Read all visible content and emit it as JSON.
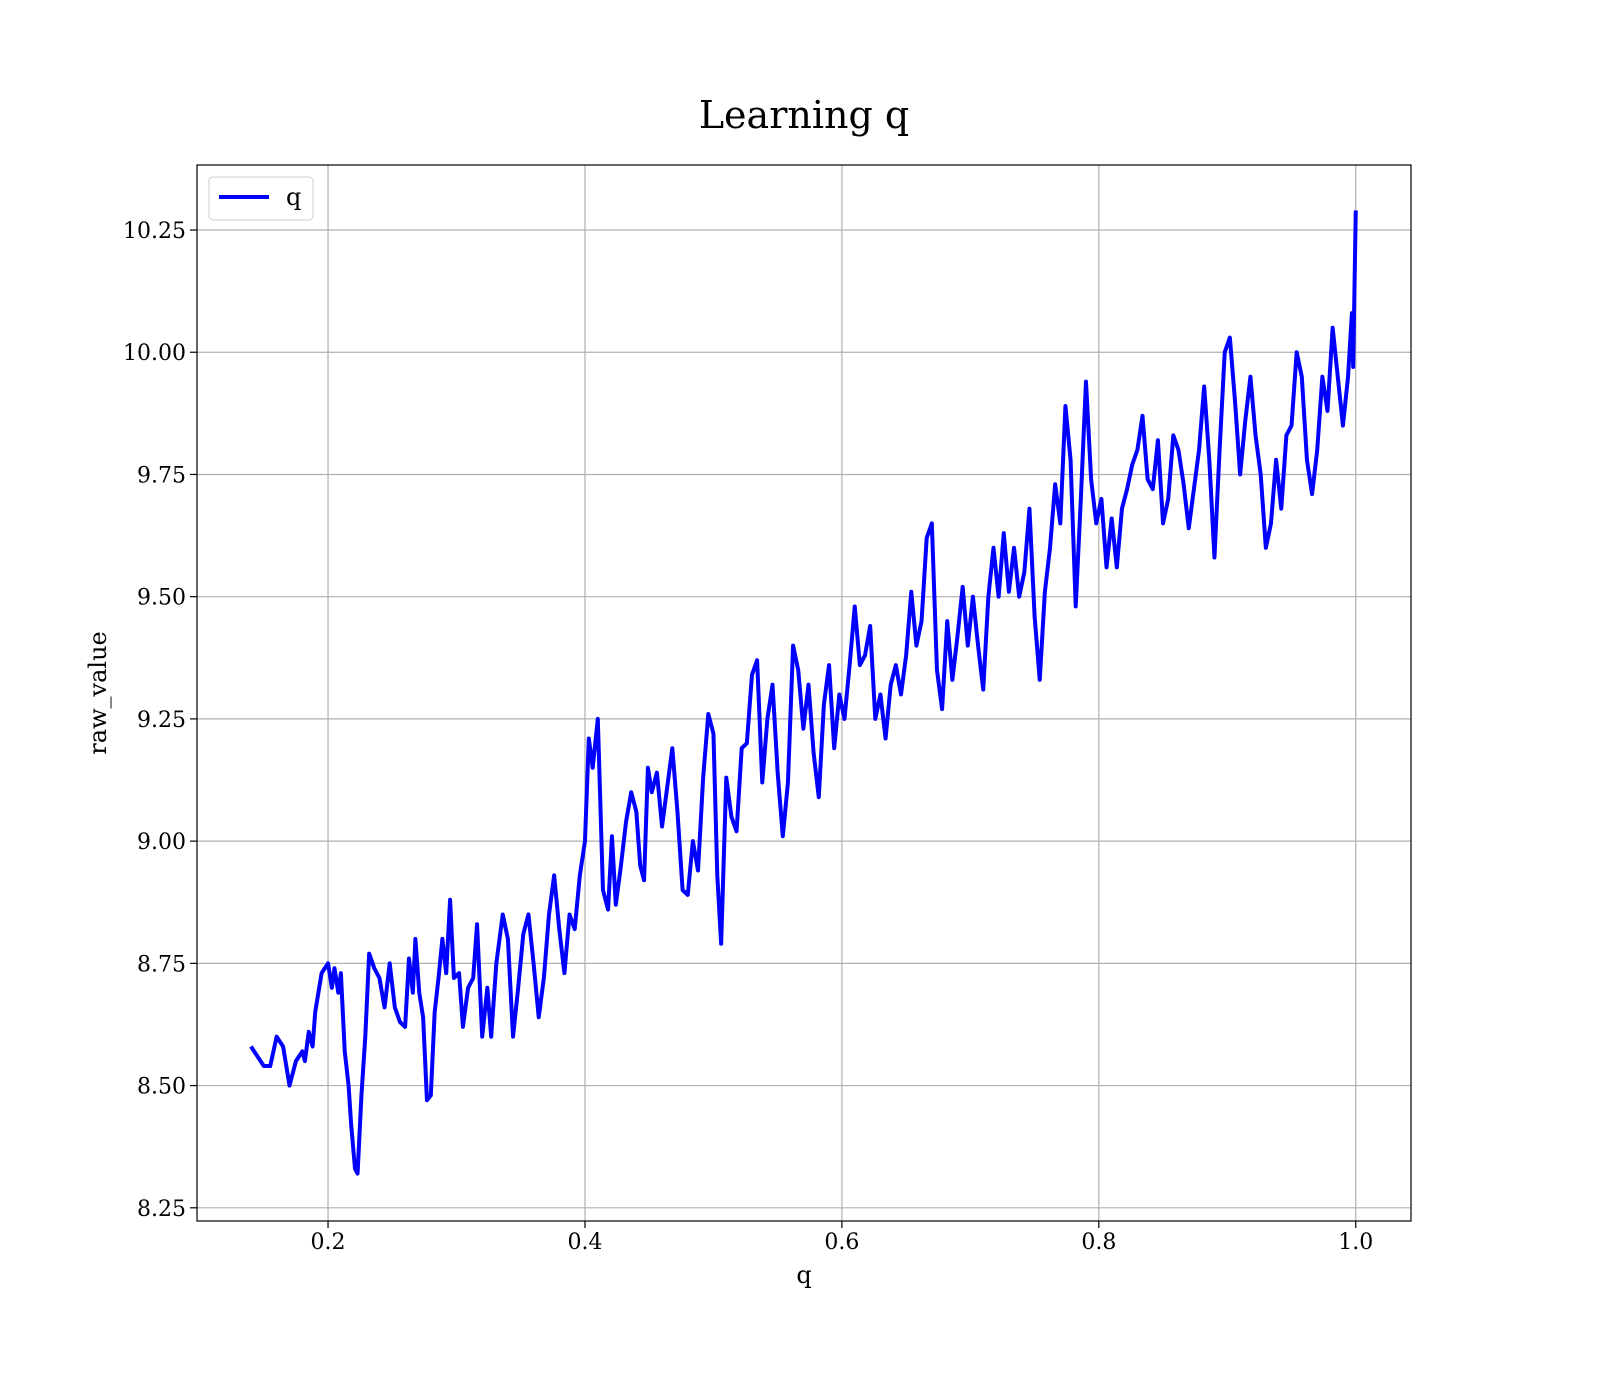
{
  "chart_data": {
    "type": "line",
    "title": "Learning q",
    "x_label": "q",
    "y_label": "raw_value",
    "xlim": [
      0.098,
      1.043
    ],
    "ylim": [
      8.223,
      10.383
    ],
    "xticks": [
      0.2,
      0.4,
      0.6,
      0.8,
      {
        "value": 1,
        "label": "1.0"
      }
    ],
    "yticks": [
      8.25,
      {
        "value": 8.5,
        "label": "8.50"
      },
      8.75,
      {
        "value": 9,
        "label": "9.00"
      },
      9.25,
      {
        "value": 9.5,
        "label": "9.50"
      },
      9.75,
      {
        "value": 10,
        "label": "10.00"
      },
      10.25
    ],
    "grid": true,
    "legend": "upper left",
    "x": [
      0.14,
      0.15,
      0.155,
      0.16,
      0.165,
      0.17,
      0.175,
      0.18,
      0.182,
      0.185,
      0.188,
      0.19,
      0.195,
      0.2,
      0.203,
      0.205,
      0.208,
      0.21,
      0.213,
      0.216,
      0.218,
      0.221,
      0.223,
      0.226,
      0.229,
      0.232,
      0.236,
      0.24,
      0.244,
      0.248,
      0.252,
      0.256,
      0.26,
      0.263,
      0.266,
      0.268,
      0.271,
      0.274,
      0.277,
      0.28,
      0.283,
      0.286,
      0.289,
      0.292,
      0.295,
      0.298,
      0.302,
      0.305,
      0.309,
      0.313,
      0.316,
      0.32,
      0.324,
      0.327,
      0.331,
      0.336,
      0.34,
      0.344,
      0.348,
      0.352,
      0.356,
      0.36,
      0.364,
      0.368,
      0.372,
      0.376,
      0.38,
      0.384,
      0.388,
      0.392,
      0.396,
      0.4,
      0.403,
      0.406,
      0.41,
      0.414,
      0.418,
      0.421,
      0.424,
      0.428,
      0.432,
      0.436,
      0.44,
      0.443,
      0.446,
      0.449,
      0.452,
      0.456,
      0.46,
      0.464,
      0.468,
      0.472,
      0.476,
      0.48,
      0.484,
      0.488,
      0.492,
      0.496,
      0.5,
      0.503,
      0.506,
      0.51,
      0.514,
      0.518,
      0.522,
      0.526,
      0.53,
      0.534,
      0.538,
      0.542,
      0.546,
      0.55,
      0.554,
      0.558,
      0.562,
      0.566,
      0.57,
      0.574,
      0.578,
      0.582,
      0.586,
      0.59,
      0.594,
      0.598,
      0.602,
      0.606,
      0.61,
      0.614,
      0.618,
      0.622,
      0.626,
      0.63,
      0.634,
      0.638,
      0.642,
      0.646,
      0.65,
      0.654,
      0.658,
      0.662,
      0.666,
      0.67,
      0.674,
      0.678,
      0.682,
      0.686,
      0.69,
      0.694,
      0.698,
      0.702,
      0.706,
      0.71,
      0.714,
      0.718,
      0.722,
      0.726,
      0.73,
      0.734,
      0.738,
      0.742,
      0.746,
      0.75,
      0.754,
      0.758,
      0.762,
      0.766,
      0.77,
      0.774,
      0.778,
      0.782,
      0.786,
      0.79,
      0.794,
      0.798,
      0.802,
      0.806,
      0.81,
      0.814,
      0.818,
      0.822,
      0.826,
      0.83,
      0.834,
      0.838,
      0.842,
      0.846,
      0.85,
      0.854,
      0.858,
      0.862,
      0.866,
      0.87,
      0.874,
      0.878,
      0.882,
      0.886,
      0.89,
      0.894,
      0.898,
      0.902,
      0.906,
      0.91,
      0.914,
      0.918,
      0.922,
      0.926,
      0.93,
      0.934,
      0.938,
      0.942,
      0.946,
      0.95,
      0.954,
      0.958,
      0.962,
      0.966,
      0.97,
      0.974,
      0.978,
      0.982,
      0.986,
      0.99,
      0.994,
      0.997,
      0.998,
      1.0
    ],
    "series": [
      {
        "name": "q",
        "color": "#0000ff",
        "values": [
          8.58,
          8.54,
          8.54,
          8.6,
          8.58,
          8.5,
          8.55,
          8.57,
          8.55,
          8.61,
          8.58,
          8.65,
          8.73,
          8.75,
          8.7,
          8.74,
          8.69,
          8.73,
          8.57,
          8.5,
          8.42,
          8.33,
          8.32,
          8.48,
          8.6,
          8.77,
          8.74,
          8.72,
          8.66,
          8.75,
          8.66,
          8.63,
          8.62,
          8.76,
          8.69,
          8.8,
          8.69,
          8.64,
          8.47,
          8.48,
          8.65,
          8.72,
          8.8,
          8.73,
          8.88,
          8.72,
          8.73,
          8.62,
          8.7,
          8.72,
          8.83,
          8.6,
          8.7,
          8.6,
          8.75,
          8.85,
          8.8,
          8.6,
          8.7,
          8.81,
          8.85,
          8.75,
          8.64,
          8.72,
          8.85,
          8.93,
          8.82,
          8.73,
          8.85,
          8.82,
          8.93,
          9.0,
          9.21,
          9.15,
          9.25,
          8.9,
          8.86,
          9.01,
          8.87,
          8.95,
          9.04,
          9.1,
          9.06,
          8.95,
          8.92,
          9.15,
          9.1,
          9.14,
          9.03,
          9.11,
          9.19,
          9.06,
          8.9,
          8.89,
          9.0,
          8.94,
          9.13,
          9.26,
          9.22,
          8.93,
          8.79,
          9.13,
          9.05,
          9.02,
          9.19,
          9.2,
          9.34,
          9.37,
          9.12,
          9.25,
          9.32,
          9.14,
          9.01,
          9.12,
          9.4,
          9.35,
          9.23,
          9.32,
          9.18,
          9.09,
          9.28,
          9.36,
          9.19,
          9.3,
          9.25,
          9.36,
          9.48,
          9.36,
          9.38,
          9.44,
          9.25,
          9.3,
          9.21,
          9.32,
          9.36,
          9.3,
          9.38,
          9.51,
          9.4,
          9.45,
          9.62,
          9.65,
          9.35,
          9.27,
          9.45,
          9.33,
          9.42,
          9.52,
          9.4,
          9.5,
          9.4,
          9.31,
          9.5,
          9.6,
          9.5,
          9.63,
          9.51,
          9.6,
          9.5,
          9.55,
          9.68,
          9.46,
          9.33,
          9.51,
          9.6,
          9.73,
          9.65,
          9.89,
          9.78,
          9.48,
          9.7,
          9.94,
          9.74,
          9.65,
          9.7,
          9.56,
          9.66,
          9.56,
          9.68,
          9.72,
          9.77,
          9.8,
          9.87,
          9.74,
          9.72,
          9.82,
          9.65,
          9.7,
          9.83,
          9.8,
          9.73,
          9.64,
          9.72,
          9.8,
          9.93,
          9.78,
          9.58,
          9.8,
          10.0,
          10.03,
          9.9,
          9.75,
          9.86,
          9.95,
          9.83,
          9.75,
          9.6,
          9.65,
          9.78,
          9.68,
          9.83,
          9.85,
          10.0,
          9.95,
          9.78,
          9.71,
          9.8,
          9.95,
          9.88,
          10.05,
          9.95,
          9.85,
          9.95,
          10.08,
          9.97,
          10.29
        ]
      }
    ]
  }
}
